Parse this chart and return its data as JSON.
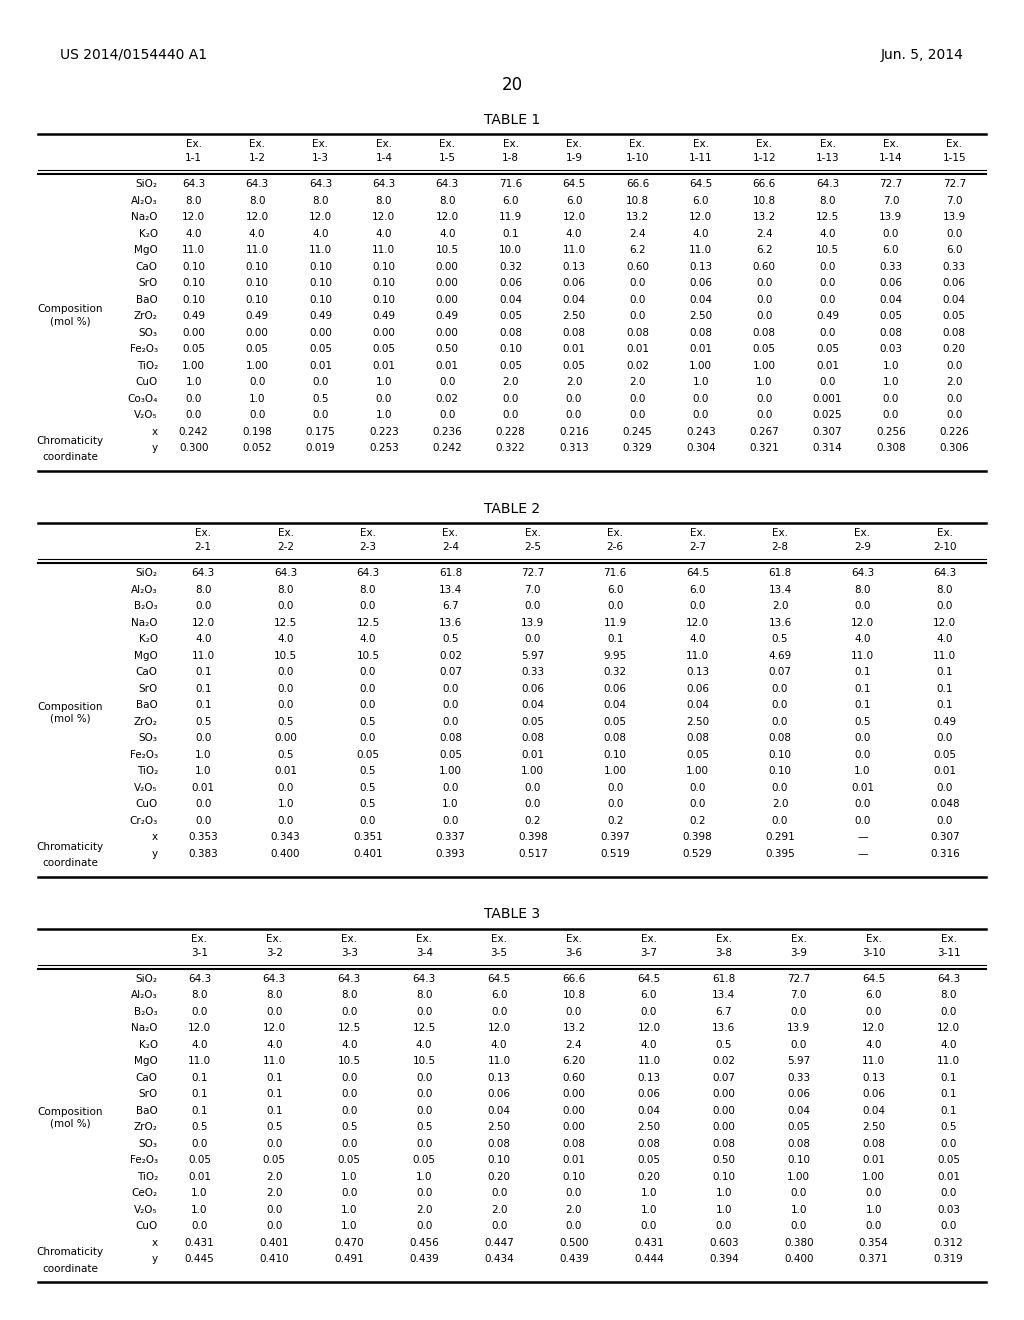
{
  "header_text_left": "US 2014/0154440 A1",
  "header_text_right": "Jun. 5, 2014",
  "page_number": "20",
  "background_color": "#ffffff",
  "table1": {
    "title": "TABLE 1",
    "columns": [
      "Ex.\n1-1",
      "Ex.\n1-2",
      "Ex.\n1-3",
      "Ex.\n1-4",
      "Ex.\n1-5",
      "Ex.\n1-8",
      "Ex.\n1-9",
      "Ex.\n1-10",
      "Ex.\n1-11",
      "Ex.\n1-12",
      "Ex.\n1-13",
      "Ex.\n1-14",
      "Ex.\n1-15"
    ],
    "row_headers_col1": [
      "Composition",
      "(mol %)"
    ],
    "row_headers_col2": [
      "SiO₂",
      "Al₂O₃",
      "Na₂O",
      "K₂O",
      "MgO",
      "CaO",
      "SrO",
      "BaO",
      "ZrO₂",
      "SO₃",
      "Fe₂O₃",
      "TiO₂",
      "CuO",
      "Co₃O₄",
      "V₂O₅",
      "x",
      "y"
    ],
    "row_headers_col1_spans": [
      "SiO₂",
      "Al₂O₃",
      "Na₂O",
      "K₂O",
      "MgO",
      "CaO",
      "SrO",
      "BaO",
      "ZrO₂",
      "SO₃",
      "Fe₂O₃",
      "TiO₂",
      "CuO",
      "Co₃O₄",
      "V₂O₅"
    ],
    "label_col1_composition": [
      "Composition",
      "(mol %)"
    ],
    "label_col1_chromaticity": [
      "Chromaticity",
      "coordinate"
    ],
    "rows": [
      [
        "SiO₂",
        "64.3",
        "64.3",
        "64.3",
        "64.3",
        "64.3",
        "71.6",
        "64.5",
        "66.6",
        "64.5",
        "66.6",
        "64.3",
        "72.7",
        "72.7"
      ],
      [
        "Al₂O₃",
        "8.0",
        "8.0",
        "8.0",
        "8.0",
        "8.0",
        "6.0",
        "6.0",
        "10.8",
        "6.0",
        "10.8",
        "8.0",
        "7.0",
        "7.0"
      ],
      [
        "Na₂O",
        "12.0",
        "12.0",
        "12.0",
        "12.0",
        "12.0",
        "11.9",
        "12.0",
        "13.2",
        "12.0",
        "13.2",
        "12.5",
        "13.9",
        "13.9"
      ],
      [
        "K₂O",
        "4.0",
        "4.0",
        "4.0",
        "4.0",
        "4.0",
        "0.1",
        "4.0",
        "2.4",
        "4.0",
        "2.4",
        "4.0",
        "0.0",
        "0.0"
      ],
      [
        "MgO",
        "11.0",
        "11.0",
        "11.0",
        "11.0",
        "10.5",
        "10.0",
        "11.0",
        "6.2",
        "11.0",
        "6.2",
        "10.5",
        "6.0",
        "6.0"
      ],
      [
        "CaO",
        "0.10",
        "0.10",
        "0.10",
        "0.10",
        "0.00",
        "0.32",
        "0.13",
        "0.60",
        "0.13",
        "0.60",
        "0.0",
        "0.33",
        "0.33"
      ],
      [
        "SrO",
        "0.10",
        "0.10",
        "0.10",
        "0.10",
        "0.00",
        "0.06",
        "0.06",
        "0.0",
        "0.06",
        "0.0",
        "0.0",
        "0.06",
        "0.06"
      ],
      [
        "BaO",
        "0.10",
        "0.10",
        "0.10",
        "0.10",
        "0.00",
        "0.04",
        "0.04",
        "0.0",
        "0.04",
        "0.0",
        "0.0",
        "0.04",
        "0.04"
      ],
      [
        "ZrO₂",
        "0.49",
        "0.49",
        "0.49",
        "0.49",
        "0.49",
        "0.05",
        "2.50",
        "0.0",
        "2.50",
        "0.0",
        "0.49",
        "0.05",
        "0.05"
      ],
      [
        "SO₃",
        "0.00",
        "0.00",
        "0.00",
        "0.00",
        "0.00",
        "0.08",
        "0.08",
        "0.08",
        "0.08",
        "0.08",
        "0.0",
        "0.08",
        "0.08"
      ],
      [
        "Fe₂O₃",
        "0.05",
        "0.05",
        "0.05",
        "0.05",
        "0.50",
        "0.10",
        "0.01",
        "0.01",
        "0.01",
        "0.05",
        "0.05",
        "0.03",
        "0.20"
      ],
      [
        "TiO₂",
        "1.00",
        "1.00",
        "0.01",
        "0.01",
        "0.01",
        "0.05",
        "0.05",
        "0.02",
        "1.00",
        "1.00",
        "0.01",
        "1.0",
        "0.0"
      ],
      [
        "CuO",
        "1.0",
        "0.0",
        "0.0",
        "1.0",
        "0.0",
        "2.0",
        "2.0",
        "2.0",
        "1.0",
        "1.0",
        "0.0",
        "1.0",
        "2.0"
      ],
      [
        "Co₃O₄",
        "0.0",
        "1.0",
        "0.5",
        "0.0",
        "0.02",
        "0.0",
        "0.0",
        "0.0",
        "0.0",
        "0.0",
        "0.001",
        "0.0",
        "0.0"
      ],
      [
        "V₂O₅",
        "0.0",
        "0.0",
        "0.0",
        "1.0",
        "0.0",
        "0.0",
        "0.0",
        "0.0",
        "0.0",
        "0.0",
        "0.025",
        "0.0",
        "0.0"
      ],
      [
        "x",
        "0.242",
        "0.198",
        "0.175",
        "0.223",
        "0.236",
        "0.228",
        "0.216",
        "0.245",
        "0.243",
        "0.267",
        "0.307",
        "0.256",
        "0.226"
      ],
      [
        "y",
        "0.300",
        "0.052",
        "0.019",
        "0.253",
        "0.242",
        "0.322",
        "0.313",
        "0.329",
        "0.304",
        "0.321",
        "0.314",
        "0.308",
        "0.306"
      ]
    ]
  },
  "table2": {
    "title": "TABLE 2",
    "columns": [
      "Ex.\n2-1",
      "Ex.\n2-2",
      "Ex.\n2-3",
      "Ex.\n2-4",
      "Ex.\n2-5",
      "Ex.\n2-6",
      "Ex.\n2-7",
      "Ex.\n2-8",
      "Ex.\n2-9",
      "Ex.\n2-10"
    ],
    "rows": [
      [
        "SiO₂",
        "64.3",
        "64.3",
        "64.3",
        "61.8",
        "72.7",
        "71.6",
        "64.5",
        "61.8",
        "64.3",
        "64.3"
      ],
      [
        "Al₂O₃",
        "8.0",
        "8.0",
        "8.0",
        "13.4",
        "7.0",
        "6.0",
        "6.0",
        "13.4",
        "8.0",
        "8.0"
      ],
      [
        "B₂O₃",
        "0.0",
        "0.0",
        "0.0",
        "6.7",
        "0.0",
        "0.0",
        "0.0",
        "2.0",
        "0.0",
        "0.0"
      ],
      [
        "Na₂O",
        "12.0",
        "12.5",
        "12.5",
        "13.6",
        "13.9",
        "11.9",
        "12.0",
        "13.6",
        "12.0",
        "12.0"
      ],
      [
        "K₂O",
        "4.0",
        "4.0",
        "4.0",
        "0.5",
        "0.0",
        "0.1",
        "4.0",
        "0.5",
        "4.0",
        "4.0"
      ],
      [
        "MgO",
        "11.0",
        "10.5",
        "10.5",
        "0.02",
        "5.97",
        "9.95",
        "11.0",
        "4.69",
        "11.0",
        "11.0"
      ],
      [
        "CaO",
        "0.1",
        "0.0",
        "0.0",
        "0.07",
        "0.33",
        "0.32",
        "0.13",
        "0.07",
        "0.1",
        "0.1"
      ],
      [
        "SrO",
        "0.1",
        "0.0",
        "0.0",
        "0.0",
        "0.06",
        "0.06",
        "0.06",
        "0.0",
        "0.1",
        "0.1"
      ],
      [
        "BaO",
        "0.1",
        "0.0",
        "0.0",
        "0.0",
        "0.04",
        "0.04",
        "0.04",
        "0.0",
        "0.1",
        "0.1"
      ],
      [
        "ZrO₂",
        "0.5",
        "0.5",
        "0.5",
        "0.0",
        "0.05",
        "0.05",
        "2.50",
        "0.0",
        "0.5",
        "0.49"
      ],
      [
        "SO₃",
        "0.0",
        "0.00",
        "0.0",
        "0.08",
        "0.08",
        "0.08",
        "0.08",
        "0.08",
        "0.0",
        "0.0"
      ],
      [
        "Fe₂O₃",
        "1.0",
        "0.5",
        "0.05",
        "0.05",
        "0.01",
        "0.10",
        "0.05",
        "0.10",
        "0.0",
        "0.05"
      ],
      [
        "TiO₂",
        "1.0",
        "0.01",
        "0.5",
        "1.00",
        "1.00",
        "1.00",
        "1.00",
        "0.10",
        "1.0",
        "0.01"
      ],
      [
        "V₂O₅",
        "0.01",
        "0.0",
        "0.5",
        "0.0",
        "0.0",
        "0.0",
        "0.0",
        "0.0",
        "0.01",
        "0.0"
      ],
      [
        "CuO",
        "0.0",
        "1.0",
        "0.5",
        "1.0",
        "0.0",
        "0.0",
        "0.0",
        "2.0",
        "0.0",
        "0.048"
      ],
      [
        "Cr₂O₃",
        "0.0",
        "0.0",
        "0.0",
        "0.0",
        "0.2",
        "0.2",
        "0.2",
        "0.0",
        "0.0",
        "0.0"
      ],
      [
        "x",
        "0.353",
        "0.343",
        "0.351",
        "0.337",
        "0.398",
        "0.397",
        "0.398",
        "0.291",
        "—",
        "0.307"
      ],
      [
        "y",
        "0.383",
        "0.400",
        "0.401",
        "0.393",
        "0.517",
        "0.519",
        "0.529",
        "0.395",
        "—",
        "0.316"
      ]
    ]
  },
  "table3": {
    "title": "TABLE 3",
    "columns": [
      "Ex.\n3-1",
      "Ex.\n3-2",
      "Ex.\n3-3",
      "Ex.\n3-4",
      "Ex.\n3-5",
      "Ex.\n3-6",
      "Ex.\n3-7",
      "Ex.\n3-8",
      "Ex.\n3-9",
      "Ex.\n3-10",
      "Ex.\n3-11"
    ],
    "rows": [
      [
        "SiO₂",
        "64.3",
        "64.3",
        "64.3",
        "64.3",
        "64.5",
        "66.6",
        "64.5",
        "61.8",
        "72.7",
        "64.5",
        "64.3"
      ],
      [
        "Al₂O₃",
        "8.0",
        "8.0",
        "8.0",
        "8.0",
        "6.0",
        "10.8",
        "6.0",
        "13.4",
        "7.0",
        "6.0",
        "8.0"
      ],
      [
        "B₂O₃",
        "0.0",
        "0.0",
        "0.0",
        "0.0",
        "0.0",
        "0.0",
        "0.0",
        "6.7",
        "0.0",
        "0.0",
        "0.0"
      ],
      [
        "Na₂O",
        "12.0",
        "12.0",
        "12.5",
        "12.5",
        "12.0",
        "13.2",
        "12.0",
        "13.6",
        "13.9",
        "12.0",
        "12.0"
      ],
      [
        "K₂O",
        "4.0",
        "4.0",
        "4.0",
        "4.0",
        "4.0",
        "2.4",
        "4.0",
        "0.5",
        "0.0",
        "4.0",
        "4.0"
      ],
      [
        "MgO",
        "11.0",
        "11.0",
        "10.5",
        "10.5",
        "11.0",
        "6.20",
        "11.0",
        "0.02",
        "5.97",
        "11.0",
        "11.0"
      ],
      [
        "CaO",
        "0.1",
        "0.1",
        "0.0",
        "0.0",
        "0.13",
        "0.60",
        "0.13",
        "0.07",
        "0.33",
        "0.13",
        "0.1"
      ],
      [
        "SrO",
        "0.1",
        "0.1",
        "0.0",
        "0.0",
        "0.06",
        "0.00",
        "0.06",
        "0.00",
        "0.06",
        "0.06",
        "0.1"
      ],
      [
        "BaO",
        "0.1",
        "0.1",
        "0.0",
        "0.0",
        "0.04",
        "0.00",
        "0.04",
        "0.00",
        "0.04",
        "0.04",
        "0.1"
      ],
      [
        "ZrO₂",
        "0.5",
        "0.5",
        "0.5",
        "0.5",
        "2.50",
        "0.00",
        "2.50",
        "0.00",
        "0.05",
        "2.50",
        "0.5"
      ],
      [
        "SO₃",
        "0.0",
        "0.0",
        "0.0",
        "0.0",
        "0.08",
        "0.08",
        "0.08",
        "0.08",
        "0.08",
        "0.08",
        "0.0"
      ],
      [
        "Fe₂O₃",
        "0.05",
        "0.05",
        "0.05",
        "0.05",
        "0.10",
        "0.01",
        "0.05",
        "0.50",
        "0.10",
        "0.01",
        "0.05"
      ],
      [
        "TiO₂",
        "0.01",
        "2.0",
        "1.0",
        "1.0",
        "0.20",
        "0.10",
        "0.20",
        "0.10",
        "1.00",
        "1.00",
        "0.01"
      ],
      [
        "CeO₂",
        "1.0",
        "2.0",
        "0.0",
        "0.0",
        "0.0",
        "0.0",
        "1.0",
        "1.0",
        "0.0",
        "0.0",
        "0.0"
      ],
      [
        "V₂O₅",
        "1.0",
        "0.0",
        "1.0",
        "2.0",
        "2.0",
        "2.0",
        "1.0",
        "1.0",
        "1.0",
        "1.0",
        "0.03"
      ],
      [
        "CuO",
        "0.0",
        "0.0",
        "1.0",
        "0.0",
        "0.0",
        "0.0",
        "0.0",
        "0.0",
        "0.0",
        "0.0",
        "0.0"
      ],
      [
        "x",
        "0.431",
        "0.401",
        "0.470",
        "0.456",
        "0.447",
        "0.500",
        "0.431",
        "0.603",
        "0.380",
        "0.354",
        "0.312"
      ],
      [
        "y",
        "0.445",
        "0.410",
        "0.491",
        "0.439",
        "0.434",
        "0.439",
        "0.444",
        "0.394",
        "0.400",
        "0.371",
        "0.319"
      ]
    ]
  }
}
